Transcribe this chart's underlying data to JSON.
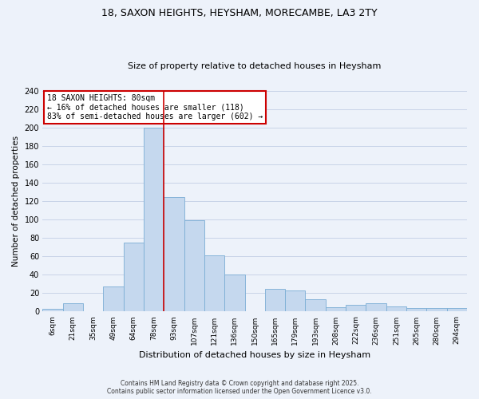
{
  "title": "18, SAXON HEIGHTS, HEYSHAM, MORECAMBE, LA3 2TY",
  "subtitle": "Size of property relative to detached houses in Heysham",
  "xlabel": "Distribution of detached houses by size in Heysham",
  "ylabel": "Number of detached properties",
  "categories": [
    "6sqm",
    "21sqm",
    "35sqm",
    "49sqm",
    "64sqm",
    "78sqm",
    "93sqm",
    "107sqm",
    "121sqm",
    "136sqm",
    "150sqm",
    "165sqm",
    "179sqm",
    "193sqm",
    "208sqm",
    "222sqm",
    "236sqm",
    "251sqm",
    "265sqm",
    "280sqm",
    "294sqm"
  ],
  "values": [
    3,
    9,
    0,
    27,
    75,
    200,
    124,
    99,
    61,
    40,
    0,
    25,
    23,
    13,
    5,
    7,
    9,
    6,
    4,
    4,
    4
  ],
  "bar_color": "#c5d8ee",
  "bar_edge_color": "#7aadd4",
  "vline_x_index": 5,
  "vline_color": "#cc0000",
  "ylim": [
    0,
    240
  ],
  "yticks": [
    0,
    20,
    40,
    60,
    80,
    100,
    120,
    140,
    160,
    180,
    200,
    220,
    240
  ],
  "annotation_title": "18 SAXON HEIGHTS: 80sqm",
  "annotation_line1": "← 16% of detached houses are smaller (118)",
  "annotation_line2": "83% of semi-detached houses are larger (602) →",
  "annotation_box_color": "#ffffff",
  "annotation_box_edge": "#cc0000",
  "grid_color": "#c8d4e8",
  "background_color": "#edf2fa",
  "footer1": "Contains HM Land Registry data © Crown copyright and database right 2025.",
  "footer2": "Contains public sector information licensed under the Open Government Licence v3.0."
}
